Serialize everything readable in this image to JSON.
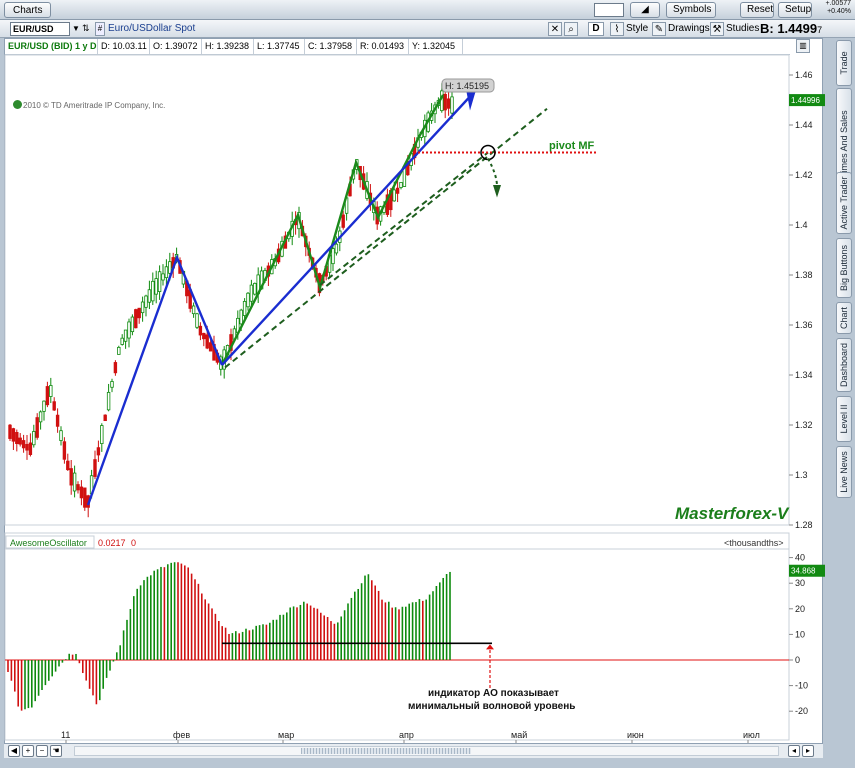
{
  "titlebar": {
    "tab": "Charts",
    "buttons": [
      "Symbols",
      "Reset",
      "Setup"
    ],
    "change_line1": "+.00577",
    "change_line2": "+0.40%"
  },
  "symbar": {
    "symbol": "EUR/USD",
    "description": "Euro/USDollar Spot",
    "period": "D",
    "style_label": "Style",
    "drawings_label": "Drawings",
    "studies_label": "Studies",
    "bid_label": "B: 1.4499",
    "bid_sub": "7"
  },
  "infobar": {
    "title": "EUR/USD (BID) 1 y D",
    "date": "D: 10.03.11",
    "open": "O: 1.39072",
    "high": "H: 1.39238",
    "low": "L: 1.37745",
    "close": "C: 1.37958",
    "range": "R: 0.01493",
    "y": "Y: 1.32045"
  },
  "copyright": "2010 © TD Ameritrade IP Company, Inc.",
  "price_axis": {
    "ticks": [
      "1.46",
      "1.44",
      "1.42",
      "1.4",
      "1.38",
      "1.36",
      "1.34",
      "1.32",
      "1.3",
      "1.28"
    ],
    "current": "1.44996"
  },
  "annotations": {
    "high_label": "H: 1.45195",
    "pivot": "pivot MF",
    "watermark": "Masterforex-V",
    "ao_note_line1": "индикатор АО показывает",
    "ao_note_line2": "минимальный волновой уровень"
  },
  "oscillator": {
    "name": "AwesomeOscillator",
    "value": "0.0217",
    "zero": "0",
    "units": "<thousandths>",
    "ticks": [
      "40",
      "30",
      "20",
      "10",
      "0",
      "-10",
      "-20"
    ],
    "current": "34.868"
  },
  "time_axis": [
    "11",
    "фев",
    "мар",
    "апр",
    "май",
    "июн",
    "июл"
  ],
  "right_tabs": [
    "Trade",
    "Times And Sales",
    "Active Trader",
    "Big Buttons",
    "Chart",
    "Dashboard",
    "Level II",
    "Live News"
  ],
  "colors": {
    "up": "#0e8a0e",
    "down": "#d01010",
    "wave": "#1b8a1b",
    "trend": "#1a2dd0",
    "channel": "#1e5e1e",
    "pivot": "#e01010"
  }
}
